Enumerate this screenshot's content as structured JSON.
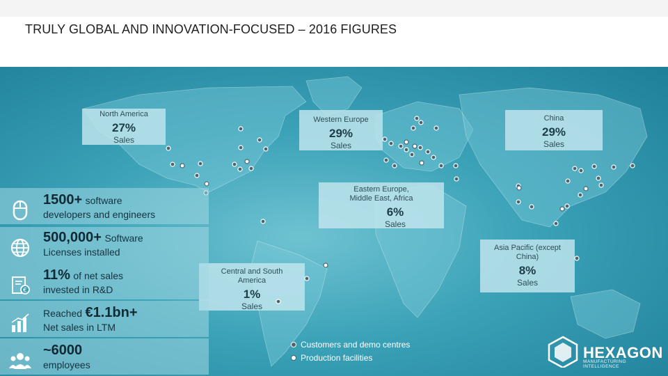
{
  "title": "TRULY GLOBAL AND INNOVATION-FOCUSED – 2016 FIGURES",
  "callouts": {
    "north_america": {
      "region": "North America",
      "pct": "27%",
      "label": "Sales"
    },
    "western_europe": {
      "region": "Western Europe",
      "pct": "29%",
      "label": "Sales"
    },
    "china": {
      "region": "China",
      "pct": "29%",
      "label": "Sales"
    },
    "eastern_europe": {
      "region": "Eastern Europe, Middle East, Africa",
      "pct": "6%",
      "label": "Sales"
    },
    "central_south_america": {
      "region": "Central and South America",
      "pct": "1%",
      "label": "Sales"
    },
    "asia_pacific": {
      "region": "Asia Pacific (except China)",
      "pct": "8%",
      "label": "Sales"
    }
  },
  "stats": {
    "software": {
      "big": "1500+",
      "small": "software",
      "line2": "developers and engineers",
      "icon": "mouse-icon"
    },
    "licenses": {
      "big": "500,000+",
      "small": "Software",
      "line2": "Licenses installed",
      "icon": "globe-icon"
    },
    "rnd": {
      "big": "11%",
      "small": "of net sales",
      "line2": "invested in R&D",
      "icon": "document-euro-icon"
    },
    "net_sales": {
      "prefix": "Reached",
      "big": "€1.1bn+",
      "line2": "Net sales in LTM",
      "icon": "bar-chart-icon"
    },
    "employees": {
      "big": "~6000",
      "line2": "employees",
      "icon": "people-icon"
    }
  },
  "legend": {
    "customers": "Customers and demo centres",
    "production": "Production facilities"
  },
  "logo": {
    "name": "HEXAGON",
    "tagline": "MANUFACTURING INTELLIGENCE"
  },
  "colors": {
    "ocean": "#3aa1b7",
    "callout": "#bee4ec",
    "text": "#1c3c48"
  }
}
